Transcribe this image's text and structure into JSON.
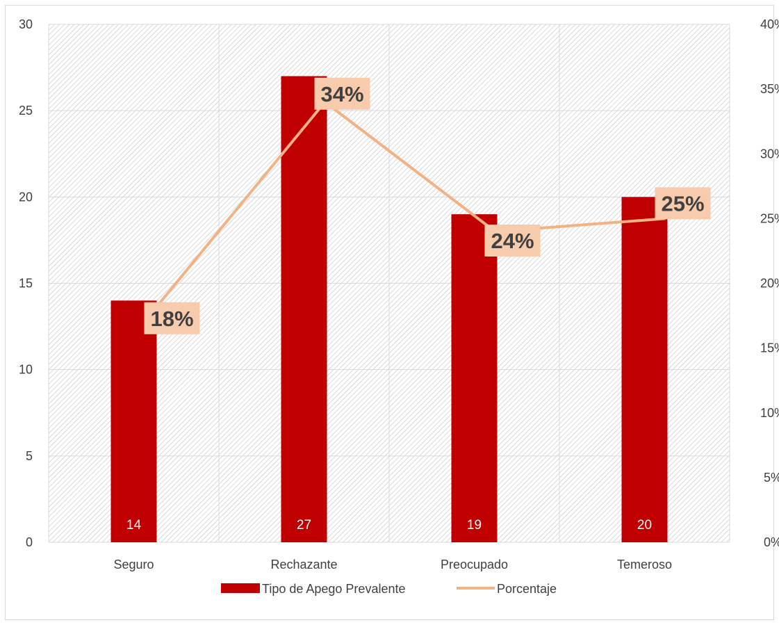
{
  "chart_data": {
    "type": "bar",
    "categories": [
      "Seguro",
      "Rechazante",
      "Preocupado",
      "Temeroso"
    ],
    "series": [
      {
        "name": "Tipo de Apego Prevalente",
        "type": "bar",
        "axis": "left",
        "values": [
          14,
          27,
          19,
          20
        ],
        "color": "#c00000",
        "data_labels": [
          "14",
          "27",
          "19",
          "20"
        ]
      },
      {
        "name": "Porcentaje",
        "type": "line",
        "axis": "right",
        "values": [
          0.18,
          0.34,
          0.24,
          0.25
        ],
        "color": "#f4b183",
        "data_labels": [
          "18%",
          "34%",
          "24%",
          "25%"
        ]
      }
    ],
    "ylim": [
      0,
      30
    ],
    "y_ticks": [
      "0",
      "5",
      "10",
      "15",
      "20",
      "25",
      "30"
    ],
    "y2lim": [
      0,
      0.4
    ],
    "y2_ticks": [
      "0%",
      "5%",
      "10%",
      "15%",
      "20%",
      "25%",
      "30%",
      "35%",
      "40%"
    ],
    "grid": true,
    "legend": "bottom",
    "title": "",
    "xlabel": "",
    "ylabel": "",
    "colors": {
      "plot_hatch": "#d9d9d9",
      "label_box": "#f8cbad",
      "gridline": "#d9d9d9",
      "text": "#404040"
    }
  }
}
